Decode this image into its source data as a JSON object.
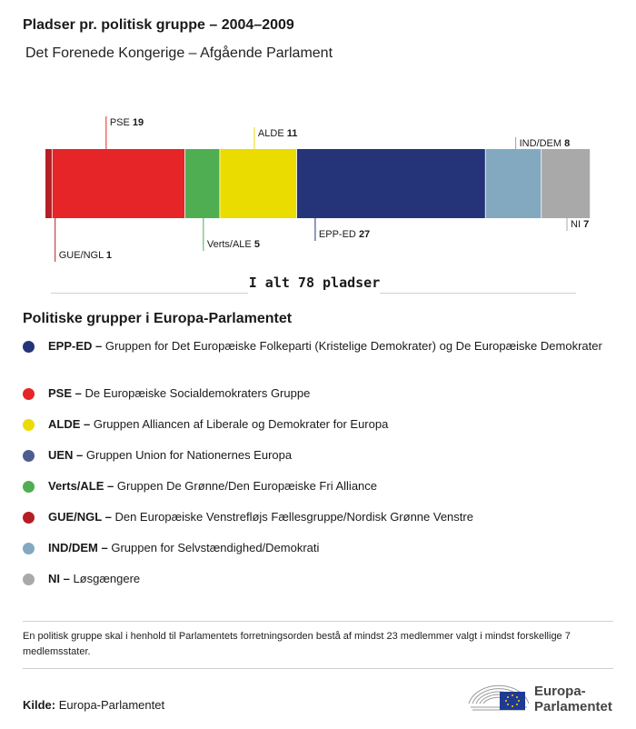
{
  "header": {
    "title": "Pladser pr. politisk gruppe – 2004–2009",
    "subtitle": "Det Forenede Kongerige – Afgående Parlament"
  },
  "chart_data": {
    "type": "bar",
    "orientation": "stacked-horizontal",
    "series": [
      {
        "name": "GUE/NGL",
        "value": 1,
        "color": "#b51f24",
        "label_side": "bottom"
      },
      {
        "name": "PSE",
        "value": 19,
        "color": "#e52528",
        "label_side": "top"
      },
      {
        "name": "Verts/ALE",
        "value": 5,
        "color": "#4fae52",
        "label_side": "bottom"
      },
      {
        "name": "ALDE",
        "value": 11,
        "color": "#ebdc00",
        "label_side": "top"
      },
      {
        "name": "EPP-ED",
        "value": 27,
        "color": "#253479",
        "label_side": "bottom"
      },
      {
        "name": "IND/DEM",
        "value": 8,
        "color": "#82a9c0",
        "label_side": "top"
      },
      {
        "name": "NI",
        "value": 7,
        "color": "#a9a9a9",
        "label_side": "bottom"
      }
    ],
    "total_label": "I alt 78 pladser"
  },
  "legend": {
    "title": "Politiske grupper i Europa-Parlamentet",
    "items": [
      {
        "abbr": "EPP-ED –",
        "text": " Gruppen for Det Europæiske Folkeparti (Kristelige Demokrater) og De Europæiske Demokrater",
        "color": "#253479"
      },
      {
        "abbr": "PSE –",
        "text": " De Europæiske Socialdemokraters Gruppe",
        "color": "#e52528"
      },
      {
        "abbr": "ALDE –",
        "text": " Gruppen Alliancen af Liberale og Demokrater for Europa",
        "color": "#ebdc00"
      },
      {
        "abbr": "UEN –",
        "text": " Gruppen Union for Nationernes Europa",
        "color": "#4d5e8e"
      },
      {
        "abbr": "Verts/ALE –",
        "text": " Gruppen De Grønne/Den Europæiske Fri Alliance",
        "color": "#4fae52"
      },
      {
        "abbr": "GUE/NGL –",
        "text": " Den Europæiske Venstrefløjs Fællesgruppe/Nordisk Grønne Venstre",
        "color": "#b51f24"
      },
      {
        "abbr": "IND/DEM –",
        "text": " Gruppen for Selvstændighed/Demokrati",
        "color": "#82a9c0"
      },
      {
        "abbr": "NI –",
        "text": " Løsgængere",
        "color": "#a9a9a9"
      }
    ]
  },
  "footnote": "En politisk gruppe skal i henhold til Parlamentets forretningsorden bestå af mindst 23 medlemmer valgt i mindst forskellige 7 medlemsstater.",
  "source": {
    "label": "Kilde:",
    "value": "Europa-Parlamentet"
  },
  "logo": {
    "line1": "Europa-",
    "line2": "Parlamentet",
    "icon": "european-parliament-logo-icon"
  }
}
